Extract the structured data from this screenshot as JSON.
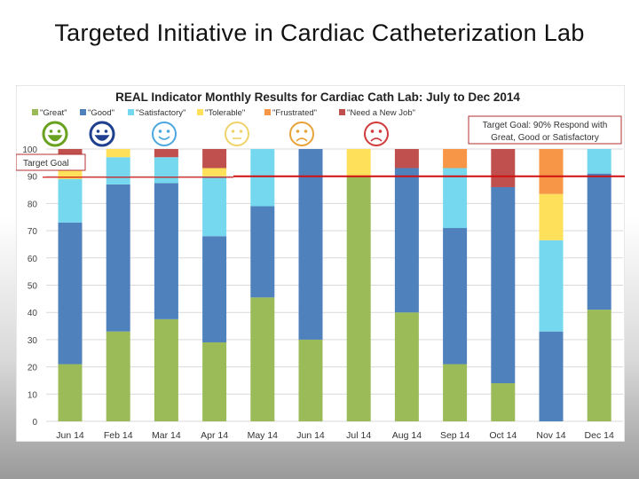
{
  "slide": {
    "title": "Targeted Initiative in Cardiac Catheterization Lab"
  },
  "chart_data": {
    "type": "bar",
    "stacked": true,
    "title": "REAL Indicator Monthly Results for Cardiac Cath Lab: July to Dec 2014",
    "xlabel": "",
    "ylabel": "",
    "ylim": [
      0,
      100
    ],
    "yticks": [
      0,
      10,
      20,
      30,
      40,
      50,
      60,
      70,
      80,
      90,
      100
    ],
    "grid": true,
    "legend_position": "top-left",
    "categories": [
      "Jun 14",
      "Feb 14",
      "Mar 14",
      "Apr 14",
      "May 14",
      "Jun 14",
      "Jul 14",
      "Aug 14",
      "Sep 14",
      "Oct 14",
      "Nov 14",
      "Dec 14"
    ],
    "series": [
      {
        "name": "\"Great\"",
        "color": "#9bbb59",
        "icon": "very-happy-face-icon",
        "icon_color": "#6aa121",
        "values": [
          21,
          33,
          37.5,
          29,
          45.5,
          30,
          90,
          40,
          21,
          14,
          0,
          41
        ]
      },
      {
        "name": "\"Good\"",
        "color": "#4f81bd",
        "icon": "happy-face-icon",
        "icon_color": "#1f3f8f",
        "values": [
          52,
          54,
          50,
          39,
          33.5,
          70,
          0,
          53,
          50,
          72,
          33,
          50
        ]
      },
      {
        "name": "\"Satisfactory\"",
        "color": "#76d8ee",
        "icon": "smile-face-icon",
        "icon_color": "#4aa8de",
        "values": [
          16,
          10,
          9.5,
          22,
          21,
          0,
          0,
          0,
          22,
          0,
          33.5,
          9
        ]
      },
      {
        "name": "\"Tolerable\"",
        "color": "#ffe05a",
        "icon": "neutral-face-icon",
        "icon_color": "#f0d36a",
        "values": [
          8,
          3,
          0,
          3,
          0,
          0,
          10,
          0,
          0,
          0,
          17,
          0
        ]
      },
      {
        "name": "\"Frustrated\"",
        "color": "#f79646",
        "icon": "frown-face-icon",
        "icon_color": "#e8a23a",
        "values": [
          0,
          0,
          0,
          0,
          0,
          0,
          0,
          0,
          7,
          0,
          16.5,
          0
        ]
      },
      {
        "name": "\"Need a New Job\"",
        "color": "#c0504d",
        "icon": "sad-crying-face-icon",
        "icon_color": "#d03a3a",
        "values": [
          3,
          0,
          3,
          7,
          0,
          0,
          0,
          7,
          0,
          14,
          0,
          0
        ]
      }
    ],
    "target_line": {
      "value": 90,
      "label": "Target Goal",
      "color": "#d01010"
    },
    "annotation": "Target Goal: 90% Respond with Great, Good or Satisfactory"
  }
}
